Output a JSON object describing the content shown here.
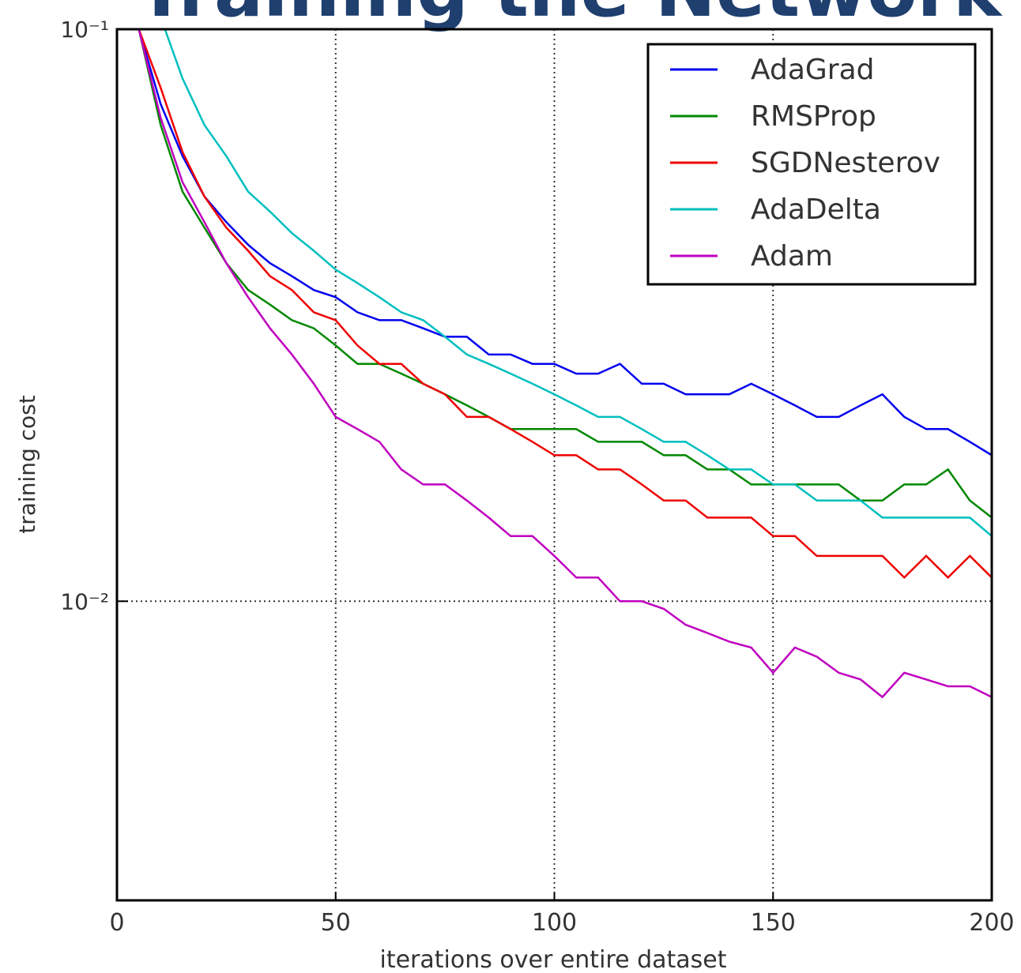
{
  "page_title": "Training the Network",
  "chart_data": {
    "type": "line",
    "xlabel": "iterations over entire dataset",
    "ylabel": "training cost",
    "log_y": true,
    "grid": true,
    "legend": "upper right",
    "xlim": [
      0,
      200
    ],
    "xticks": [
      0,
      50,
      100,
      150,
      200
    ],
    "ylim": [
      0.003,
      0.1
    ],
    "yticks": [
      {
        "value": 0.01,
        "label": "10⁻²"
      },
      {
        "value": 0.1,
        "label": "10⁻¹"
      }
    ],
    "x": [
      5,
      10,
      15,
      20,
      25,
      30,
      35,
      40,
      45,
      50,
      55,
      60,
      65,
      70,
      75,
      80,
      85,
      90,
      95,
      100,
      105,
      110,
      115,
      120,
      125,
      130,
      135,
      140,
      145,
      150,
      155,
      160,
      165,
      170,
      175,
      180,
      185,
      190,
      195,
      200
    ],
    "series": [
      {
        "name": "AdaGrad",
        "color": "#0000ee",
        "values": [
          0.1,
          0.074,
          0.06,
          0.051,
          0.046,
          0.042,
          0.039,
          0.037,
          0.035,
          0.034,
          0.032,
          0.031,
          0.031,
          0.03,
          0.029,
          0.029,
          0.027,
          0.027,
          0.026,
          0.026,
          0.025,
          0.025,
          0.026,
          0.024,
          0.024,
          0.023,
          0.023,
          0.023,
          0.024,
          0.023,
          0.022,
          0.021,
          0.021,
          0.022,
          0.023,
          0.021,
          0.02,
          0.02,
          0.019,
          0.018
        ]
      },
      {
        "name": "RMSProp",
        "color": "#008800",
        "values": [
          0.1,
          0.068,
          0.052,
          0.045,
          0.039,
          0.035,
          0.033,
          0.031,
          0.03,
          0.028,
          0.026,
          0.026,
          0.025,
          0.024,
          0.023,
          0.022,
          0.021,
          0.02,
          0.02,
          0.02,
          0.02,
          0.019,
          0.019,
          0.019,
          0.018,
          0.018,
          0.017,
          0.017,
          0.016,
          0.016,
          0.016,
          0.016,
          0.016,
          0.015,
          0.015,
          0.016,
          0.016,
          0.017,
          0.015,
          0.014
        ]
      },
      {
        "name": "SGDNesterov",
        "color": "#ee0000",
        "values": [
          0.1,
          0.079,
          0.061,
          0.051,
          0.045,
          0.041,
          0.037,
          0.035,
          0.032,
          0.031,
          0.028,
          0.026,
          0.026,
          0.024,
          0.023,
          0.021,
          0.021,
          0.02,
          0.019,
          0.018,
          0.018,
          0.017,
          0.017,
          0.016,
          0.015,
          0.015,
          0.014,
          0.014,
          0.014,
          0.013,
          0.013,
          0.012,
          0.012,
          0.012,
          0.012,
          0.011,
          0.012,
          0.011,
          0.012,
          0.011
        ]
      },
      {
        "name": "AdaDelta",
        "color": "#00bfbf",
        "values": [
          0.13,
          0.105,
          0.082,
          0.068,
          0.06,
          0.052,
          0.048,
          0.044,
          0.041,
          0.038,
          0.036,
          0.034,
          0.032,
          0.031,
          0.029,
          0.027,
          0.026,
          0.025,
          0.024,
          0.023,
          0.022,
          0.021,
          0.021,
          0.02,
          0.019,
          0.019,
          0.018,
          0.017,
          0.017,
          0.016,
          0.016,
          0.015,
          0.015,
          0.015,
          0.014,
          0.014,
          0.014,
          0.014,
          0.014,
          0.013
        ]
      },
      {
        "name": "Adam",
        "color": "#bf00bf",
        "values": [
          0.1,
          0.07,
          0.054,
          0.046,
          0.039,
          0.034,
          0.03,
          0.027,
          0.024,
          0.021,
          0.02,
          0.019,
          0.017,
          0.016,
          0.016,
          0.015,
          0.014,
          0.013,
          0.013,
          0.012,
          0.011,
          0.011,
          0.01,
          0.01,
          0.0097,
          0.0091,
          0.0088,
          0.0085,
          0.0083,
          0.0075,
          0.0083,
          0.008,
          0.0075,
          0.0073,
          0.0068,
          0.0075,
          0.0073,
          0.0071,
          0.0071,
          0.0068
        ]
      }
    ]
  }
}
